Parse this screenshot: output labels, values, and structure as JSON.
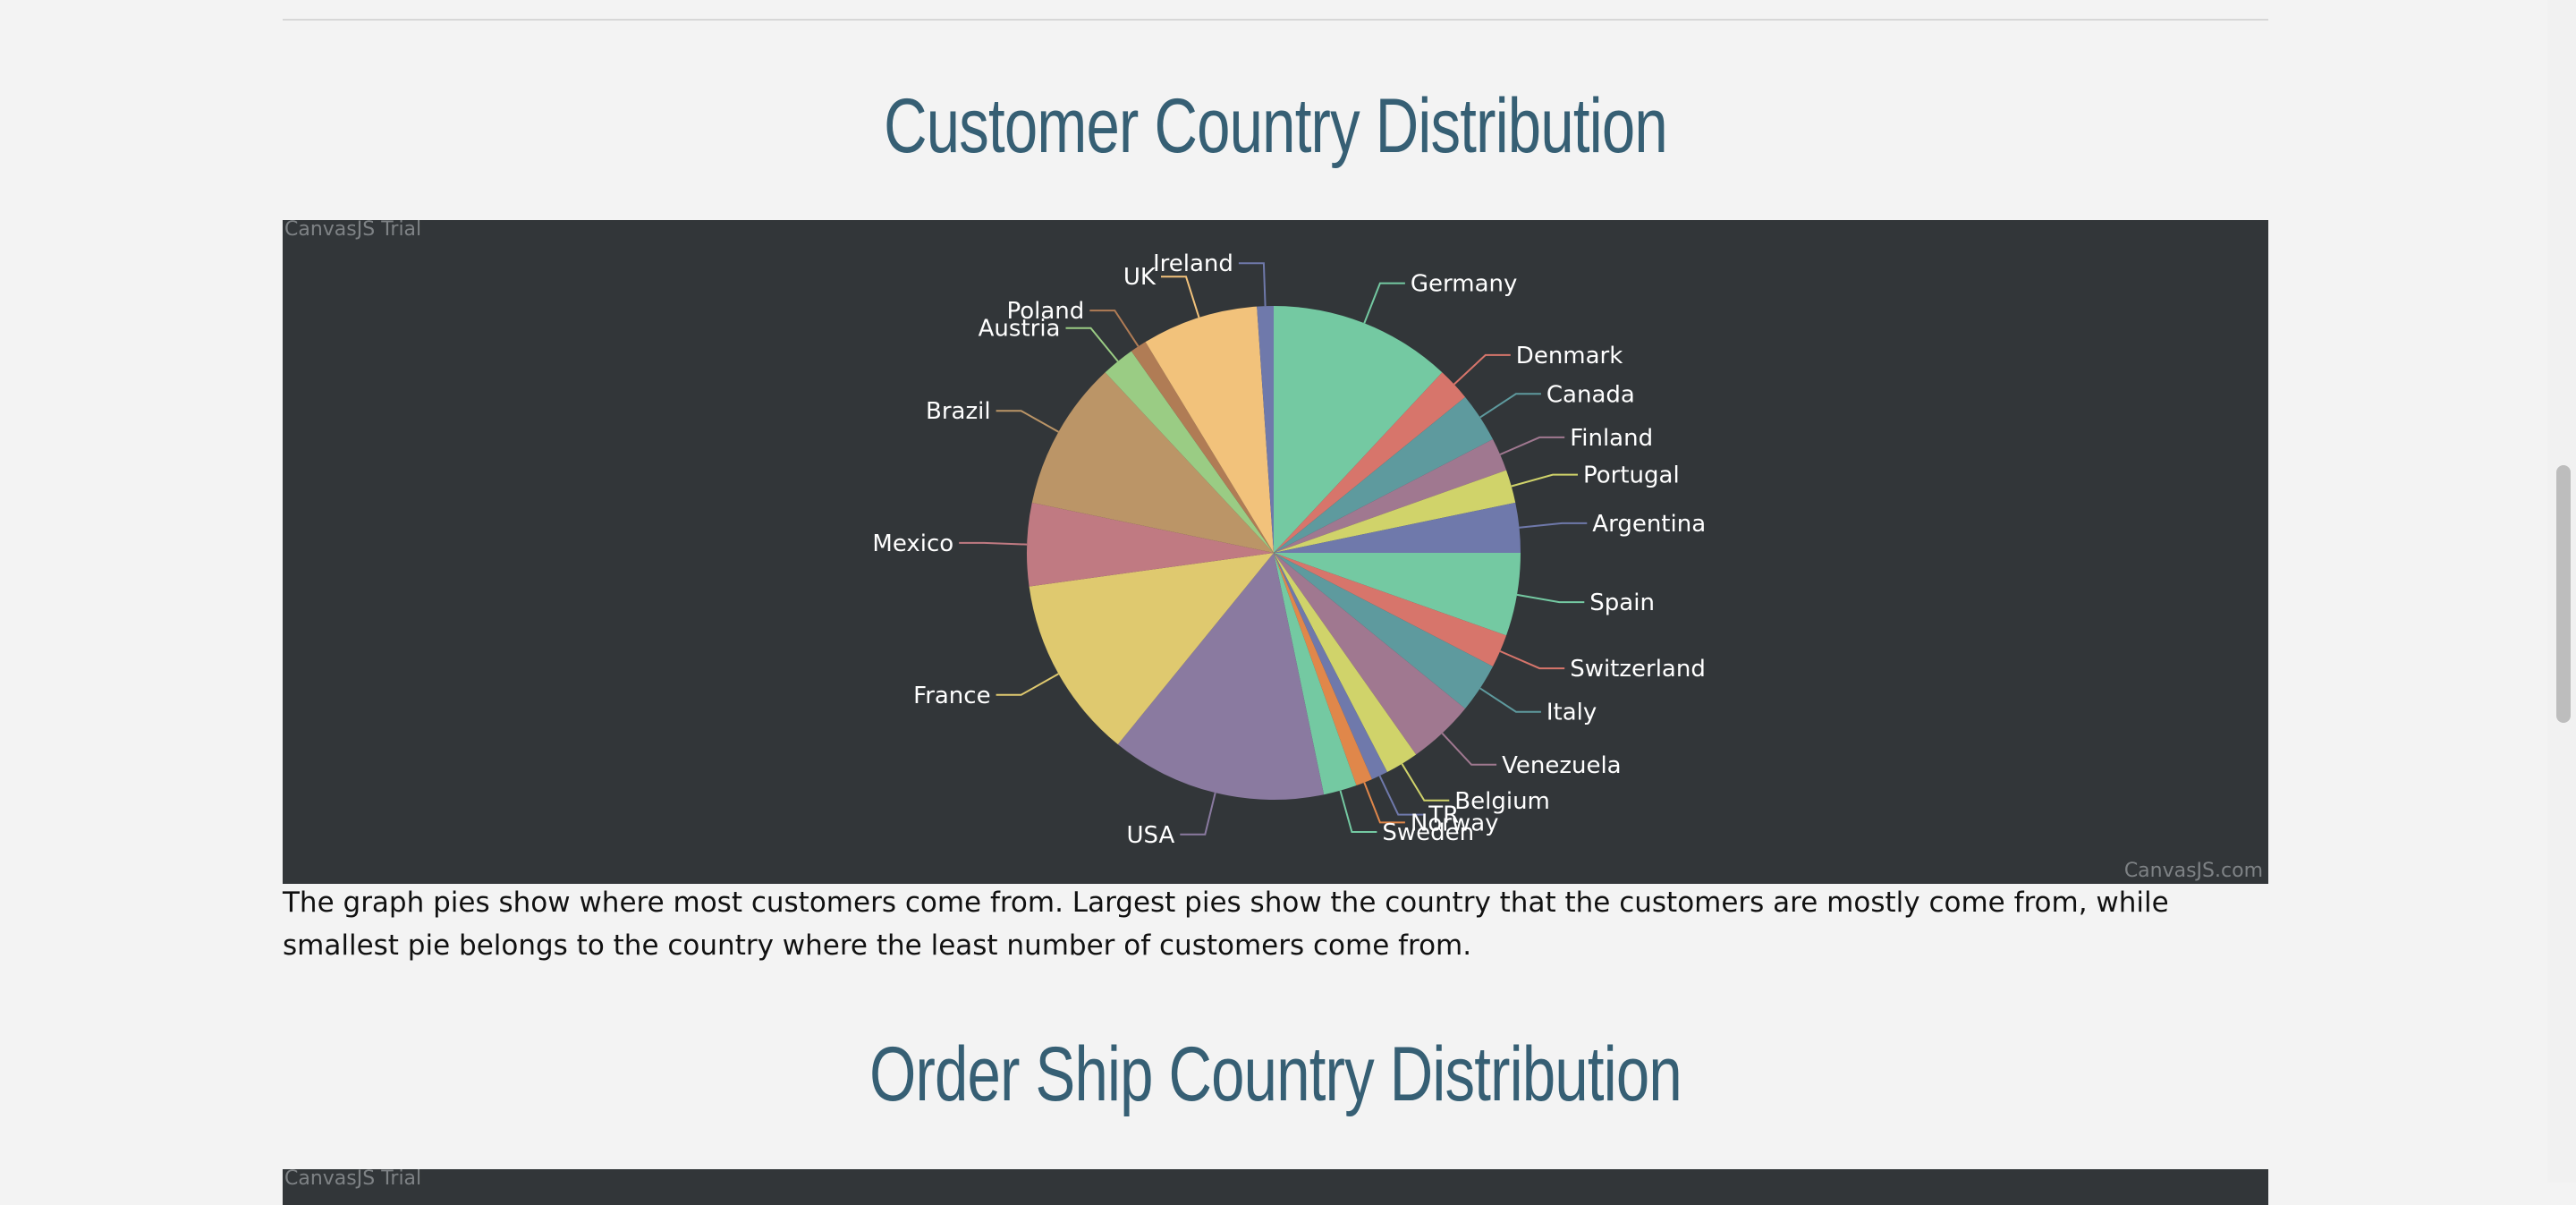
{
  "sections": {
    "customer_title": "Customer Country Distribution",
    "description": "The graph pies show where most customers come from. Largest pies show the country that the customers are mostly come from, while smallest pie belongs to the country where the least number of customers come from.",
    "order_title": "Order Ship Country Distribution"
  },
  "watermarks": {
    "trial": "CanvasJS Trial",
    "site": "CanvasJS.com"
  },
  "chart_data": {
    "type": "pie",
    "background": "#323639",
    "categories": [
      "Germany",
      "Denmark",
      "Canada",
      "Finland",
      "Portugal",
      "Argentina",
      "Spain",
      "Switzerland",
      "Italy",
      "Venezuela",
      "Belgium",
      "TR",
      "Norway",
      "Sweden",
      "USA",
      "France",
      "Mexico",
      "Brazil",
      "Austria",
      "Poland",
      "UK",
      "Ireland"
    ],
    "values": [
      11,
      2,
      3,
      2,
      2,
      3,
      5,
      2,
      3,
      4,
      2,
      1,
      1,
      2,
      13,
      11,
      5,
      9,
      2,
      1,
      7,
      1
    ],
    "colors": [
      "#74c9a2",
      "#d7756b",
      "#5e9a9e",
      "#a07890",
      "#d0d36a",
      "#6f79ab",
      "#74c9a2",
      "#d7756b",
      "#5e9a9e",
      "#a07890",
      "#d0d36a",
      "#6f79ab",
      "#e0874a",
      "#74c9a2",
      "#8a7aa0",
      "#dfc96f",
      "#c07a82",
      "#bb9567",
      "#9acc84",
      "#b07c55",
      "#f2c27b",
      "#6f79ab"
    ]
  }
}
